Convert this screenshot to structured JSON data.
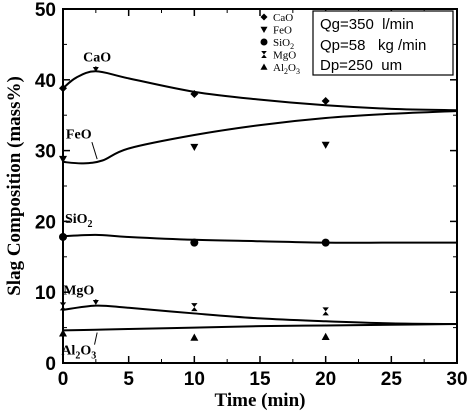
{
  "chart_data": {
    "type": "scatter",
    "xlabel": "Time (min)",
    "ylabel": "Slag Composition (mass%)",
    "xlim": [
      0,
      30
    ],
    "ylim": [
      0,
      50
    ],
    "x_ticks": [
      "0",
      "5",
      "10",
      "15",
      "20",
      "25",
      "30"
    ],
    "y_ticks": [
      "0",
      "10",
      "20",
      "30",
      "40",
      "50"
    ],
    "legend_position": "top-right",
    "series": [
      {
        "name": "CaO",
        "base": "CaO",
        "sub": "",
        "marker": "diamond",
        "label_at": {
          "x": 2.6,
          "y": 42.6
        },
        "points": [
          {
            "x": 0,
            "y": 38.8
          },
          {
            "x": 10,
            "y": 38.0
          },
          {
            "x": 20,
            "y": 37.0
          }
        ],
        "curve": [
          [
            0,
            38.8
          ],
          [
            1,
            40.3
          ],
          [
            2.5,
            41.2
          ],
          [
            5,
            40.2
          ],
          [
            10,
            38.3
          ],
          [
            15,
            37.2
          ],
          [
            20,
            36.4
          ],
          [
            25,
            35.9
          ],
          [
            30,
            35.7
          ]
        ]
      },
      {
        "name": "FeO",
        "base": "FeO",
        "sub": "",
        "marker": "triangle-down",
        "label_at": {
          "x": 1.2,
          "y": 31.7
        },
        "points": [
          {
            "x": 0,
            "y": 28.8
          },
          {
            "x": 10,
            "y": 30.5
          },
          {
            "x": 20,
            "y": 30.8
          }
        ],
        "curve": [
          [
            0,
            28.4
          ],
          [
            1.5,
            28.2
          ],
          [
            3,
            28.6
          ],
          [
            5,
            30.3
          ],
          [
            10,
            32.2
          ],
          [
            15,
            33.6
          ],
          [
            20,
            34.6
          ],
          [
            25,
            35.2
          ],
          [
            30,
            35.6
          ]
        ]
      },
      {
        "name": "SiO2",
        "base": "SiO",
        "sub": "2",
        "marker": "circle",
        "label_at": {
          "x": 1.2,
          "y": 19.8
        },
        "points": [
          {
            "x": 0,
            "y": 17.8
          },
          {
            "x": 10,
            "y": 17.0
          },
          {
            "x": 20,
            "y": 17.0
          }
        ],
        "curve": [
          [
            0,
            17.9
          ],
          [
            2.5,
            18.1
          ],
          [
            5,
            17.8
          ],
          [
            10,
            17.4
          ],
          [
            15,
            17.2
          ],
          [
            20,
            17.0
          ],
          [
            25,
            17.0
          ],
          [
            30,
            17.0
          ]
        ]
      },
      {
        "name": "MgO",
        "base": "MgO",
        "sub": "",
        "marker": "hourglass",
        "label_at": {
          "x": 1.2,
          "y": 9.7
        },
        "points": [
          {
            "x": 0,
            "y": 8.0
          },
          {
            "x": 10,
            "y": 7.9
          },
          {
            "x": 20,
            "y": 7.3
          }
        ],
        "curve": [
          [
            0,
            7.5
          ],
          [
            2.5,
            8.1
          ],
          [
            5,
            7.8
          ],
          [
            10,
            7.0
          ],
          [
            15,
            6.3
          ],
          [
            20,
            5.9
          ],
          [
            25,
            5.6
          ],
          [
            30,
            5.5
          ]
        ]
      },
      {
        "name": "Al2O3",
        "base": "Al",
        "sub": "2",
        "base2": "O",
        "sub2": "3",
        "marker": "triangle-up",
        "label_at": {
          "x": 1.2,
          "y": 1.2
        },
        "points": [
          {
            "x": 0,
            "y": 4.2
          },
          {
            "x": 10,
            "y": 3.6
          },
          {
            "x": 20,
            "y": 3.7
          }
        ],
        "curve": [
          [
            0,
            4.6
          ],
          [
            2.5,
            4.7
          ],
          [
            5,
            4.8
          ],
          [
            10,
            5.0
          ],
          [
            15,
            5.2
          ],
          [
            20,
            5.3
          ],
          [
            25,
            5.4
          ],
          [
            30,
            5.5
          ]
        ]
      }
    ],
    "conditions": [
      "Qg=350  l/min",
      "Qp=58   kg /min",
      "Dp=250  um"
    ]
  }
}
